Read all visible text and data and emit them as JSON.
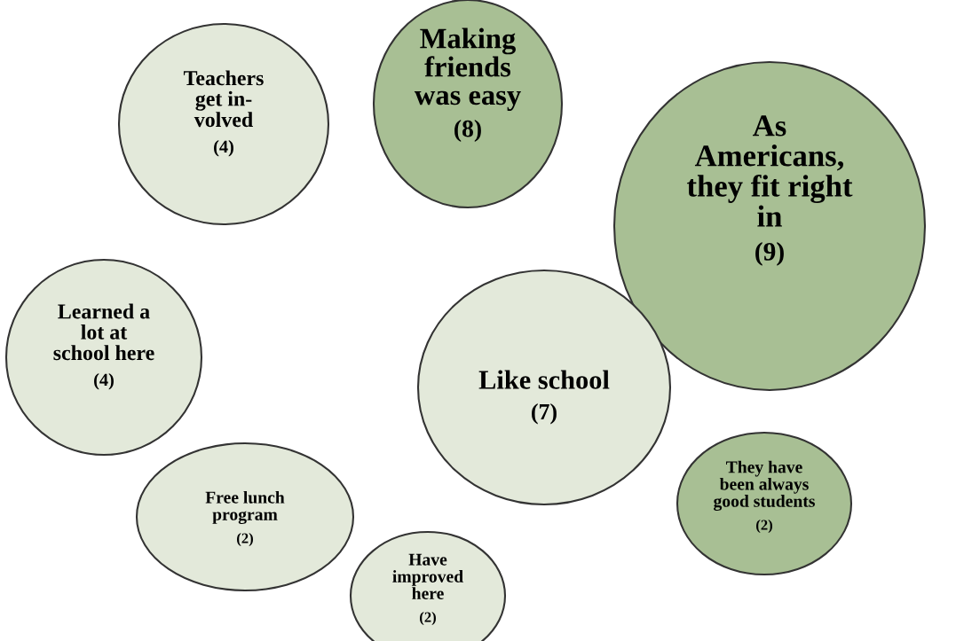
{
  "chart_data": {
    "type": "other",
    "categories": [
      "Teachers\nget in-\nvolved",
      "Making\nfriends\nwas easy",
      "As\nAmericans,\nthey fit right\nin",
      "Learned a\nlot at\nschool here",
      "Like school",
      "Free lunch\nprogram",
      "Have\nimproved\nhere",
      "They have\nbeen always\ngood students"
    ],
    "values": [
      4,
      8,
      9,
      4,
      7,
      2,
      2,
      2
    ],
    "value_labels": [
      "(4)",
      "(8)",
      "(9)",
      "(4)",
      "(7)",
      "(2)",
      "(2)",
      "(2)"
    ],
    "colors": [
      "#e3e9da",
      "#a8bf94",
      "#a8bf94",
      "#e3e9da",
      "#e3e9da",
      "#e3e9da",
      "#e3e9da",
      "#a8bf94"
    ]
  }
}
